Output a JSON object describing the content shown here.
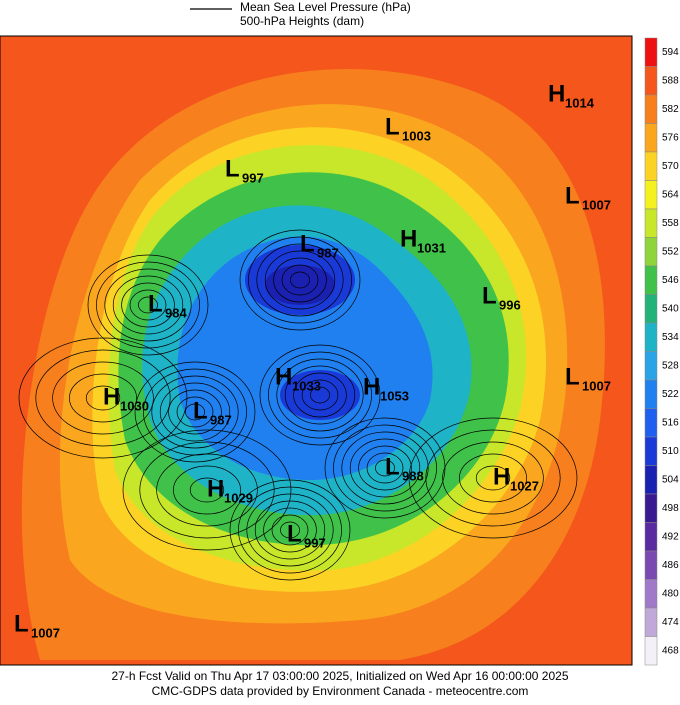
{
  "legend": {
    "lines": [
      "Mean Sea Level Pressure (hPa)",
      "500-hPa Heights (dam)"
    ]
  },
  "colorbar": {
    "levels": [
      594,
      588,
      582,
      576,
      570,
      564,
      558,
      552,
      546,
      540,
      534,
      528,
      522,
      516,
      510,
      504,
      498,
      492,
      486,
      480,
      474,
      468
    ],
    "colors": [
      "#ee1111",
      "#f4561c",
      "#f77f1e",
      "#faa61f",
      "#fcd225",
      "#f5f020",
      "#c8e62a",
      "#8ed43a",
      "#40c14a",
      "#22b27a",
      "#1fb3c8",
      "#2aa4e6",
      "#2080f0",
      "#1f5ff0",
      "#1a3ad8",
      "#1a20b0",
      "#3a1a90",
      "#5a2aa0",
      "#7a4ab0",
      "#a07ac8",
      "#c0a8d8",
      "#f4f0f8"
    ]
  },
  "centers": [
    {
      "type": "H",
      "value": 1014
    },
    {
      "type": "L",
      "value": 1003
    },
    {
      "type": "L",
      "value": 997
    },
    {
      "type": "L",
      "value": 1007
    },
    {
      "type": "H",
      "value": 1031
    },
    {
      "type": "L",
      "value": 987
    },
    {
      "type": "L",
      "value": 984
    },
    {
      "type": "L",
      "value": 996
    },
    {
      "type": "H",
      "value": 1030
    },
    {
      "type": "H",
      "value": 1033
    },
    {
      "type": "H",
      "value": 1053
    },
    {
      "type": "L",
      "value": 1007
    },
    {
      "type": "L",
      "value": 987
    },
    {
      "type": "L",
      "value": 988
    },
    {
      "type": "H",
      "value": 1027
    },
    {
      "type": "H",
      "value": 1029
    },
    {
      "type": "L",
      "value": 997
    },
    {
      "type": "L",
      "value": 1007
    }
  ],
  "footer": [
    "27-h Fcst Valid on Thu Apr 17 03:00:00 2025, Initialized on Wed Apr 16 00:00:00 2025",
    "CMC-GDPS data provided by Environment Canada - meteocentre.com"
  ]
}
